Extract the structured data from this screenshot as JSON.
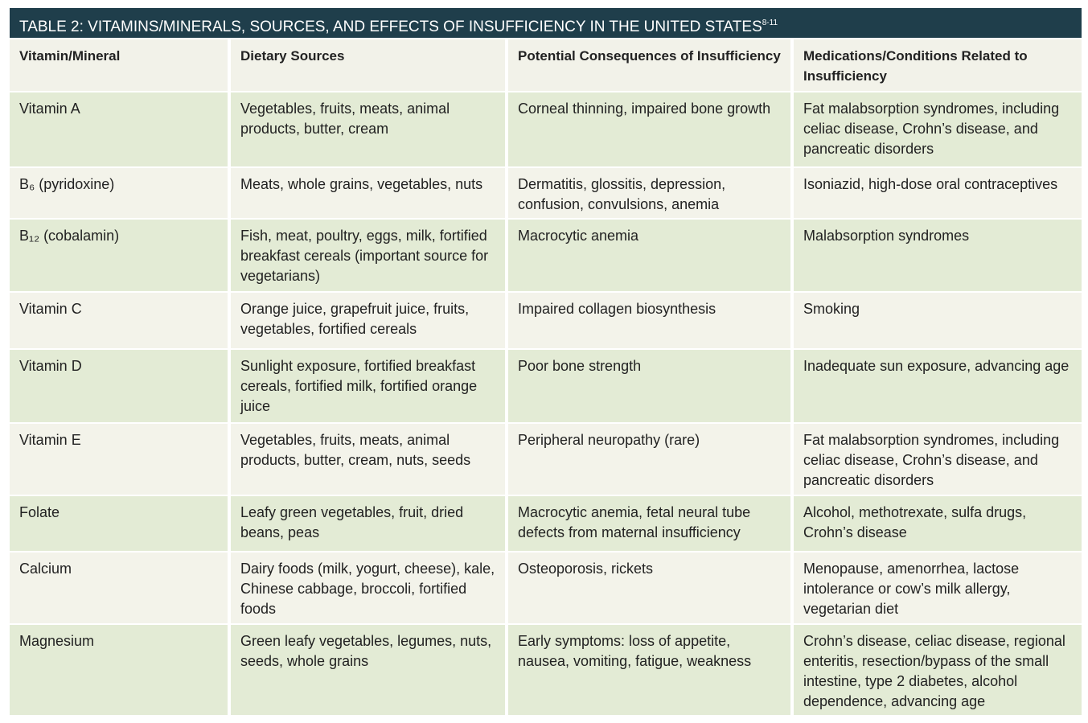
{
  "header": {
    "title": "TABLE 2: VITAMINS/MINERALS, SOURCES, AND EFFECTS OF INSUFFICIENCY IN THE UNITED STATES",
    "superscript": "8-11"
  },
  "table": {
    "columns": [
      "Vitamin/Mineral",
      "Dietary Sources",
      "Potential Consequences of Insufficiency",
      "Medications/Conditions Related to Insufficiency"
    ],
    "rows": [
      [
        "Vitamin A",
        "Vegetables, fruits, meats, animal products, butter, cream",
        "Corneal thinning, impaired bone growth",
        "Fat malabsorption syndromes, including celiac disease, Crohn’s disease, and pancreatic disorders"
      ],
      [
        "B₆ (pyridoxine)",
        "Meats, whole grains, vegetables, nuts",
        "Dermatitis, glossitis, depression, confusion, convulsions, anemia",
        "Isoniazid, high-dose oral contraceptives"
      ],
      [
        "B₁₂ (cobalamin)",
        "Fish, meat, poultry, eggs, milk, fortified breakfast cereals (important source for vegetarians)",
        "Macrocytic anemia",
        "Malabsorption syndromes"
      ],
      [
        "Vitamin C",
        "Orange juice, grapefruit juice, fruits, vegetables, fortified cereals",
        "Impaired collagen biosynthesis",
        "Smoking"
      ],
      [
        "Vitamin D",
        "Sunlight exposure, fortified breakfast cereals, fortified milk, fortified orange juice",
        "Poor bone strength",
        "Inadequate sun exposure, advancing age"
      ],
      [
        "Vitamin E",
        "Vegetables, fruits, meats, animal products, butter, cream, nuts, seeds",
        "Peripheral neuropathy (rare)",
        "Fat malabsorption syndromes, including celiac disease, Crohn’s disease, and pancreatic disorders"
      ],
      [
        "Folate",
        "Leafy green vegetables, fruit, dried beans, peas",
        "Macrocytic anemia, fetal neural tube defects from maternal insufficiency",
        "Alcohol, methotrexate, sulfa drugs, Crohn’s disease"
      ],
      [
        "Calcium",
        "Dairy foods (milk, yogurt, cheese), kale, Chinese cabbage, broccoli, fortified foods",
        "Osteoporosis, rickets",
        "Menopause, amenorrhea, lactose intolerance or cow’s milk allergy, vegetarian diet"
      ],
      [
        "Magnesium",
        "Green leafy vegetables, legumes, nuts, seeds, whole grains",
        "Early symptoms: loss of appetite, nausea, vomiting, fatigue, weakness",
        "Crohn’s disease, celiac disease, regional enteritis, resection/bypass of the small intestine, type 2 diabetes, alcohol dependence, advancing age"
      ]
    ]
  }
}
